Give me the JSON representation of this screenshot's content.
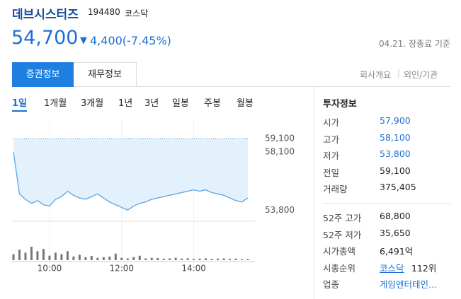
{
  "header": {
    "name": "데브시스터즈",
    "code": "194480",
    "market": "코스닥",
    "price": "54,700",
    "change": "▼",
    "change_text": "4,400(-7.45%)",
    "date": "04.21. 장종료 기준"
  },
  "tabs": [
    "증권정보",
    "재무정보"
  ],
  "links": [
    "회사개요",
    "외인/기관"
  ],
  "periods": [
    "1일",
    "1개월",
    "3개월",
    "1년",
    "3년",
    "일봉",
    "주봉",
    "월봉"
  ],
  "chart": {
    "type": "line",
    "color": "#5ba4e0",
    "values": [
      58100,
      55000,
      54600,
      54300,
      54500,
      54200,
      54100,
      54600,
      54800,
      55200,
      54900,
      54700,
      54600,
      54800,
      55000,
      54700,
      54400,
      54200,
      54000,
      53800,
      54100,
      54300,
      54400,
      54600,
      54700,
      54800,
      54900,
      55000,
      55100,
      55200,
      55300,
      55200,
      55300,
      55100,
      55000,
      54900,
      54700,
      54500,
      54400,
      54700
    ],
    "volumes": [
      20,
      35,
      25,
      45,
      30,
      38,
      15,
      25,
      20,
      30,
      12,
      18,
      10,
      14,
      8,
      10,
      12,
      22,
      8,
      6,
      10,
      15,
      6,
      8,
      7,
      5,
      6,
      8,
      5,
      6,
      4,
      5,
      6,
      4,
      5,
      6,
      4,
      5,
      3,
      4
    ],
    "volume_lim": [
      0,
      100
    ],
    "xlim": [
      0,
      39
    ],
    "xticks": [
      {
        "value": 6,
        "label": "10:00"
      },
      {
        "value": 18,
        "label": "12:00"
      },
      {
        "value": 30,
        "label": "14:00"
      }
    ],
    "ylim": [
      53500,
      59100
    ],
    "yticks": [
      {
        "value": 59100,
        "label": "59,100"
      },
      {
        "value": 58100,
        "label": "58,100"
      },
      {
        "value": 53800,
        "label": "53,800"
      }
    ]
  },
  "info": {
    "title": "투자정보",
    "rows": [
      [
        "시가",
        "57,900"
      ],
      [
        "고가",
        "58,100"
      ],
      [
        "저가",
        "53,800"
      ],
      [
        "전일",
        "59,100"
      ],
      [
        "거래량",
        "375,405"
      ]
    ],
    "rows2": [
      [
        "52주 고가",
        "68,800"
      ],
      [
        "52주 저가",
        "35,650"
      ],
      [
        "시가총액",
        "6,491억"
      ],
      [
        "시총순위",
        "코스닥",
        "112위"
      ],
      [
        "업종",
        "게임엔터테인…"
      ]
    ]
  }
}
